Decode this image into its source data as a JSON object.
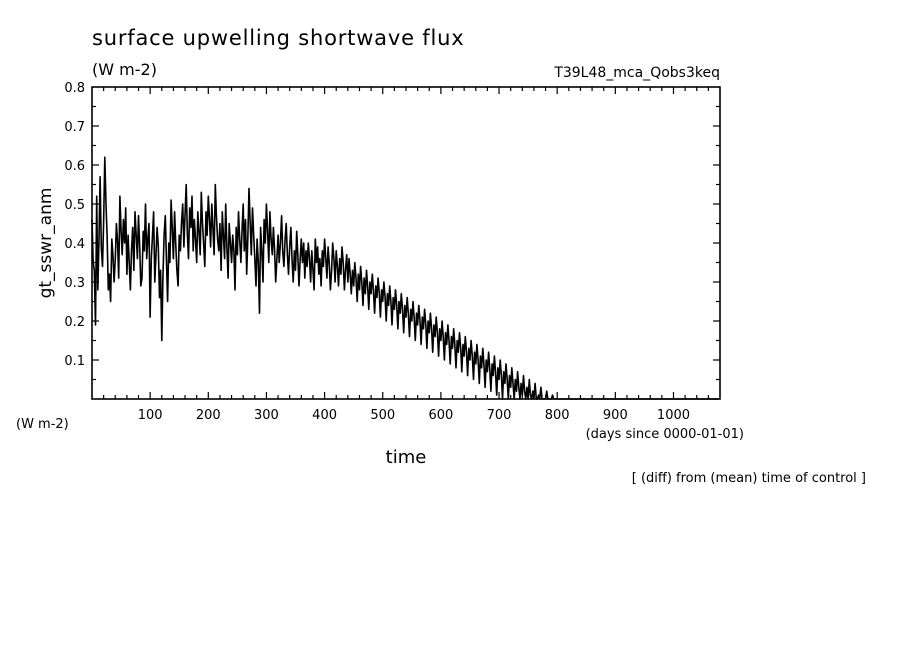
{
  "chart_data": {
    "type": "line",
    "title": "surface upwelling shortwave flux",
    "title_units": "(W m-2)",
    "experiment": "T39L48_mca_Qobs3keq",
    "ylabel": "gt_sswr_anm",
    "yunits": "(W m-2)",
    "xlabel": "time",
    "xunits": "(days since 0000-01-01)",
    "note": "[ (diff) from (mean) time of control ]",
    "xlim": [
      0,
      1080
    ],
    "ylim": [
      0,
      0.8
    ],
    "x_ticks": [
      100,
      200,
      300,
      400,
      500,
      600,
      700,
      800,
      900,
      1000
    ],
    "y_ticks": [
      0.1,
      0.2,
      0.3,
      0.4,
      0.5,
      0.6,
      0.7,
      0.8
    ],
    "series": [
      {
        "x_start": 0,
        "x_step": 2,
        "values": [
          0.46,
          0.35,
          0.33,
          0.19,
          0.52,
          0.28,
          0.41,
          0.57,
          0.39,
          0.34,
          0.45,
          0.62,
          0.5,
          0.42,
          0.28,
          0.32,
          0.25,
          0.41,
          0.37,
          0.3,
          0.36,
          0.45,
          0.4,
          0.31,
          0.52,
          0.43,
          0.37,
          0.46,
          0.4,
          0.49,
          0.32,
          0.42,
          0.35,
          0.28,
          0.38,
          0.44,
          0.33,
          0.48,
          0.42,
          0.36,
          0.47,
          0.39,
          0.29,
          0.31,
          0.43,
          0.38,
          0.5,
          0.36,
          0.41,
          0.45,
          0.21,
          0.36,
          0.42,
          0.48,
          0.3,
          0.37,
          0.44,
          0.39,
          0.26,
          0.33,
          0.15,
          0.31,
          0.42,
          0.47,
          0.36,
          0.25,
          0.4,
          0.35,
          0.51,
          0.44,
          0.36,
          0.48,
          0.4,
          0.33,
          0.29,
          0.42,
          0.38,
          0.45,
          0.5,
          0.39,
          0.47,
          0.55,
          0.42,
          0.36,
          0.49,
          0.44,
          0.52,
          0.38,
          0.46,
          0.41,
          0.35,
          0.48,
          0.43,
          0.37,
          0.53,
          0.45,
          0.4,
          0.34,
          0.48,
          0.42,
          0.52,
          0.46,
          0.39,
          0.5,
          0.44,
          0.37,
          0.55,
          0.47,
          0.41,
          0.38,
          0.45,
          0.33,
          0.48,
          0.42,
          0.36,
          0.5,
          0.39,
          0.31,
          0.45,
          0.4,
          0.35,
          0.42,
          0.38,
          0.28,
          0.44,
          0.37,
          0.48,
          0.41,
          0.35,
          0.43,
          0.5,
          0.38,
          0.46,
          0.32,
          0.41,
          0.54,
          0.45,
          0.37,
          0.49,
          0.42,
          0.36,
          0.29,
          0.41,
          0.35,
          0.22,
          0.44,
          0.38,
          0.3,
          0.46,
          0.4,
          0.5,
          0.43,
          0.35,
          0.48,
          0.41,
          0.37,
          0.44,
          0.38,
          0.3,
          0.36,
          0.42,
          0.35,
          0.4,
          0.47,
          0.38,
          0.34,
          0.41,
          0.45,
          0.37,
          0.32,
          0.39,
          0.44,
          0.36,
          0.3,
          0.38,
          0.33,
          0.43,
          0.37,
          0.29,
          0.36,
          0.41,
          0.35,
          0.4,
          0.31,
          0.38,
          0.34,
          0.4,
          0.36,
          0.3,
          0.38,
          0.33,
          0.28,
          0.41,
          0.35,
          0.39,
          0.32,
          0.36,
          0.29,
          0.38,
          0.34,
          0.41,
          0.36,
          0.31,
          0.39,
          0.35,
          0.28,
          0.33,
          0.4,
          0.36,
          0.3,
          0.38,
          0.34,
          0.29,
          0.36,
          0.32,
          0.39,
          0.35,
          0.28,
          0.33,
          0.37,
          0.3,
          0.36,
          0.32,
          0.27,
          0.33,
          0.29,
          0.35,
          0.31,
          0.25,
          0.32,
          0.28,
          0.34,
          0.3,
          0.24,
          0.31,
          0.27,
          0.33,
          0.29,
          0.23,
          0.3,
          0.27,
          0.32,
          0.28,
          0.22,
          0.29,
          0.26,
          0.31,
          0.27,
          0.21,
          0.28,
          0.25,
          0.3,
          0.26,
          0.2,
          0.27,
          0.24,
          0.29,
          0.25,
          0.19,
          0.26,
          0.23,
          0.28,
          0.24,
          0.18,
          0.25,
          0.22,
          0.27,
          0.23,
          0.17,
          0.24,
          0.21,
          0.26,
          0.22,
          0.16,
          0.23,
          0.2,
          0.25,
          0.21,
          0.15,
          0.22,
          0.19,
          0.24,
          0.2,
          0.14,
          0.21,
          0.18,
          0.23,
          0.19,
          0.13,
          0.2,
          0.17,
          0.22,
          0.18,
          0.12,
          0.19,
          0.16,
          0.21,
          0.17,
          0.11,
          0.18,
          0.15,
          0.2,
          0.16,
          0.1,
          0.17,
          0.14,
          0.19,
          0.15,
          0.09,
          0.16,
          0.13,
          0.18,
          0.14,
          0.08,
          0.15,
          0.12,
          0.17,
          0.13,
          0.07,
          0.14,
          0.11,
          0.16,
          0.12,
          0.06,
          0.13,
          0.1,
          0.15,
          0.11,
          0.05,
          0.12,
          0.09,
          0.14,
          0.1,
          0.04,
          0.11,
          0.08,
          0.13,
          0.09,
          0.03,
          0.1,
          0.07,
          0.12,
          0.08,
          0.02,
          0.09,
          0.06,
          0.11,
          0.07,
          0.01,
          0.08,
          0.05,
          0.1,
          0.06,
          0.0,
          0.07,
          0.04,
          0.09,
          0.05,
          0.0,
          0.06,
          0.03,
          0.08,
          0.04,
          0.0,
          0.05,
          0.02,
          0.07,
          0.03,
          0.0,
          0.04,
          0.01,
          0.06,
          0.02,
          0.0,
          0.03,
          0.0,
          0.05,
          0.01,
          0.0,
          0.02,
          0.0,
          0.04,
          0.0,
          0.0,
          0.01,
          0.0,
          0.03,
          0.0,
          0.0,
          0.0,
          0.0,
          0.02,
          0.0,
          0.0,
          0.0,
          0.0,
          0.01,
          0.0,
          0.0,
          0.0,
          0.0,
          0.0,
          0.0,
          0.0,
          0.0,
          0.0,
          0.0,
          0.0,
          0.0,
          0.0,
          0.0,
          0.0,
          0.0,
          0.0,
          0.0,
          0.0,
          0.0,
          0.0,
          0.0,
          0.0,
          0.0,
          0.0,
          0.0,
          0.0,
          0.0,
          0.0,
          0.0,
          0.0,
          0.0,
          0.0,
          0.0,
          0.0,
          0.0,
          0.0,
          0.0,
          0.0,
          0.0,
          0.0,
          0.0,
          0.0,
          0.0,
          0.0,
          0.0,
          0.0,
          0.0,
          0.0,
          0.0,
          0.0,
          0.0,
          0.0,
          0.0,
          0.0,
          0.0,
          0.0,
          0.0,
          0.0,
          0.0,
          0.0,
          0.0,
          0.0,
          0.0,
          0.0,
          0.0,
          0.0,
          0.0,
          0.0,
          0.0,
          0.0,
          0.0,
          0.0,
          0.0,
          0.0,
          0.0,
          0.0,
          0.0,
          0.0,
          0.0,
          0.0,
          0.0,
          0.0,
          0.0,
          0.0,
          0.0,
          0.0,
          0.0,
          0.0,
          0.0,
          0.0,
          0.0,
          0.0,
          0.0,
          0.0,
          0.0,
          0.0,
          0.0,
          0.0,
          0.0,
          0.0,
          0.0,
          0.0,
          0.0,
          0.0,
          0.0,
          0.0,
          0.0,
          0.0,
          0.0,
          0.0,
          0.0,
          0.0,
          0.0,
          0.0,
          0.0,
          0.0,
          0.0,
          0.0,
          0.0,
          0.0,
          0.0,
          0.0,
          0.0,
          0.0,
          0.0,
          0.0,
          0.0,
          0.0,
          0.0,
          0.0,
          0.0,
          0.0,
          0.0,
          0.0,
          0.0,
          0.0,
          0.0,
          0.0,
          0.0,
          0.0,
          0.0,
          0.0
        ]
      }
    ]
  }
}
